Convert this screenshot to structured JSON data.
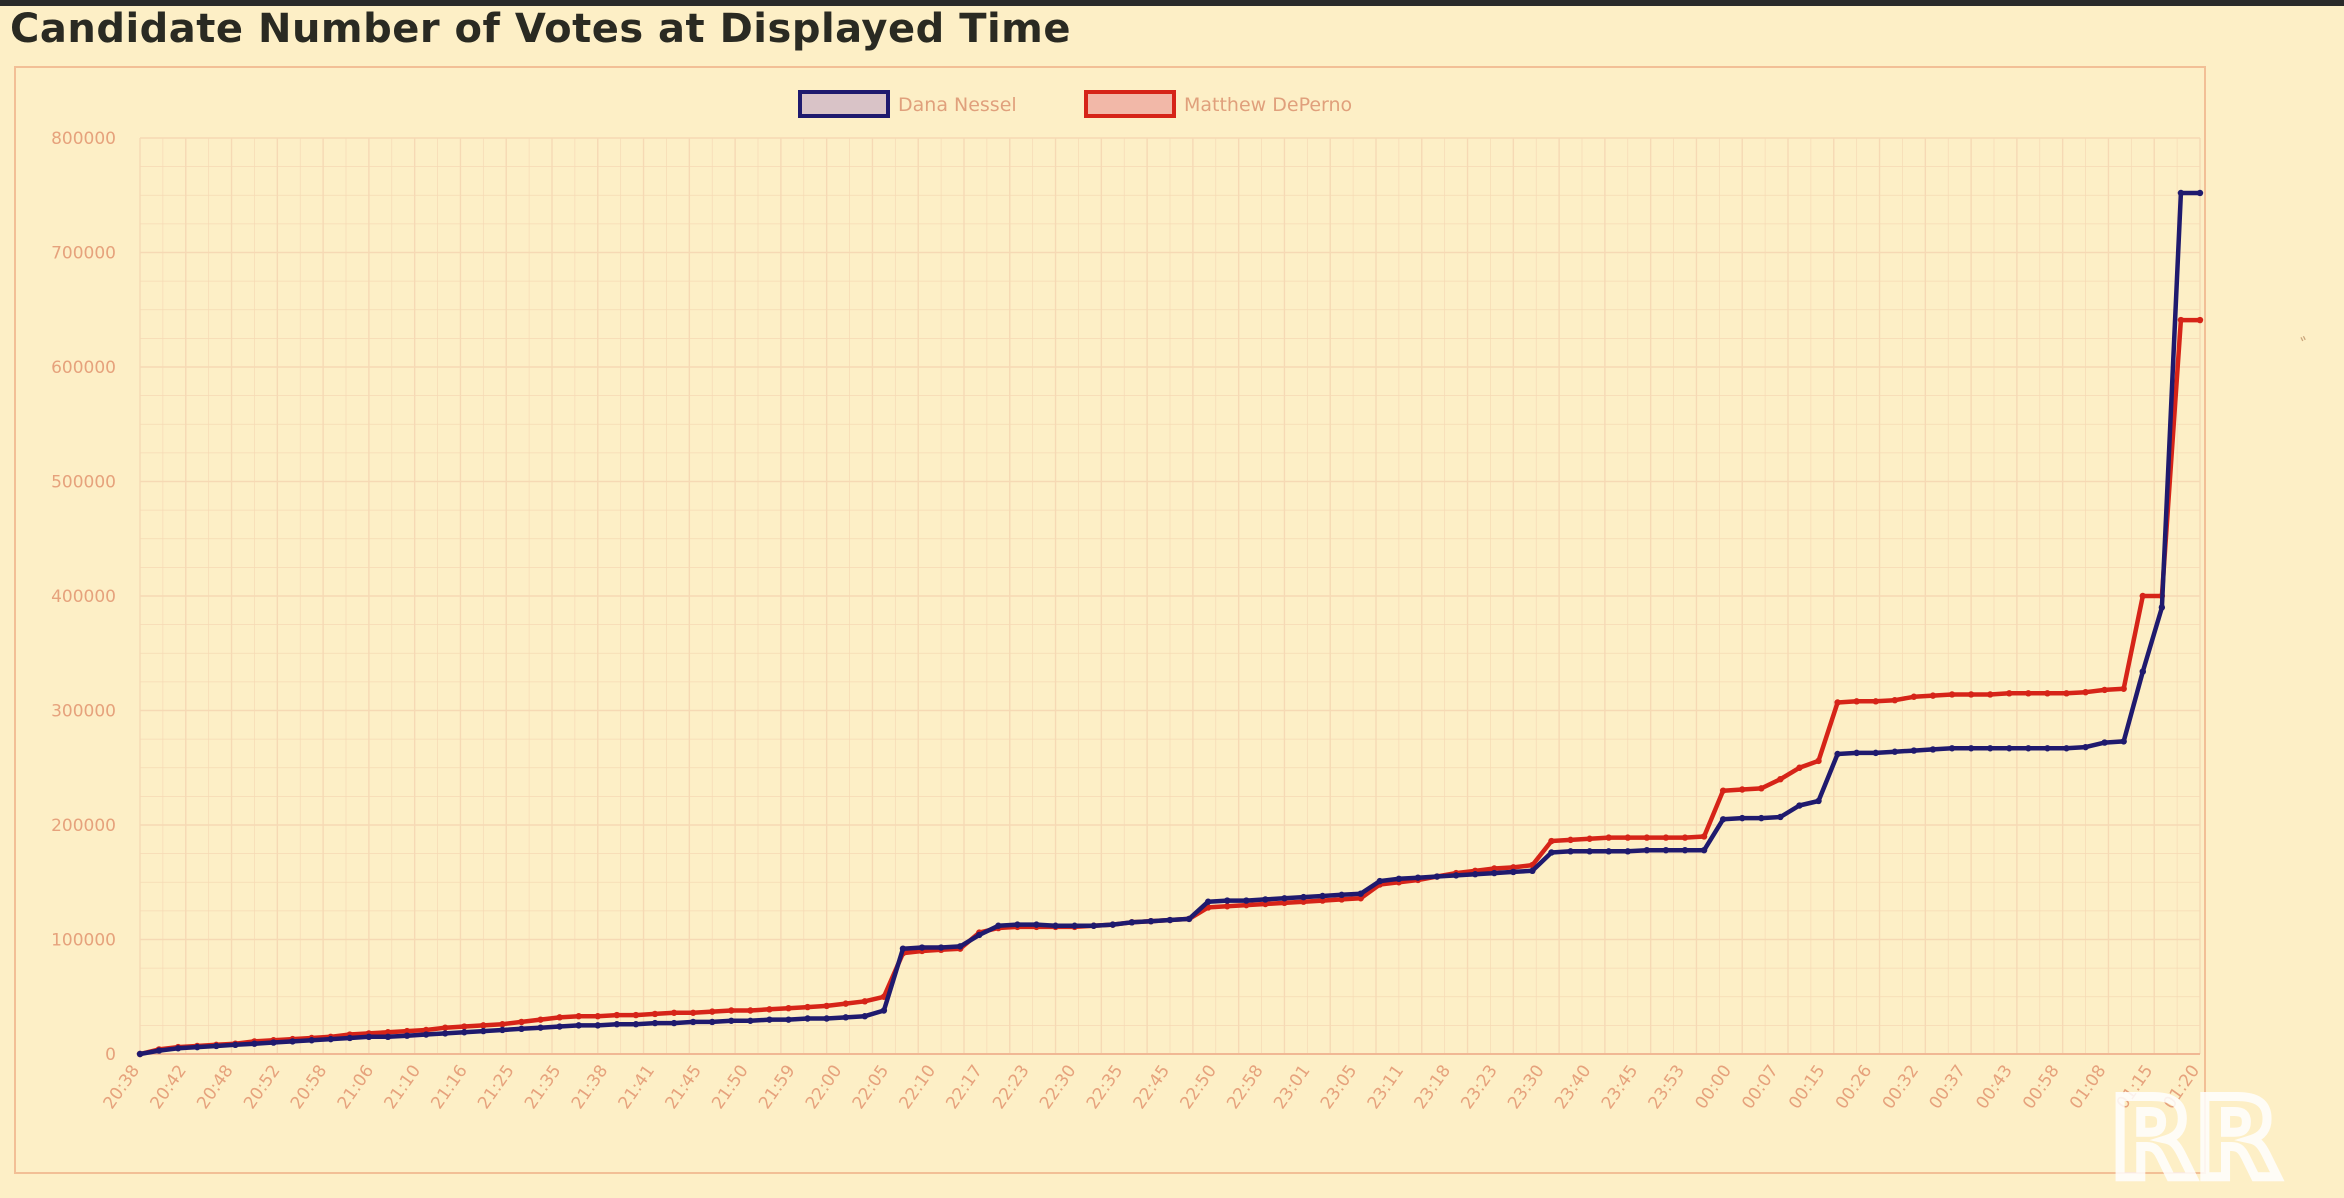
{
  "title": "Candidate Number of Votes at Displayed Time",
  "side_mark": "ﾞ",
  "logo_text": "RR",
  "colors": {
    "background": "#fdefc6",
    "grid": "#f6d9b4",
    "series1": "#1f1a6e",
    "series2": "#d62418"
  },
  "chart_data": {
    "type": "line",
    "title": "Candidate Number of Votes at Displayed Time",
    "xlabel": "",
    "ylabel": "",
    "ylim": [
      0,
      800000
    ],
    "yticks": [
      0,
      100000,
      200000,
      300000,
      400000,
      500000,
      600000,
      700000,
      800000
    ],
    "x_tick_labels": [
      "20:38",
      "20:42",
      "20:48",
      "20:52",
      "20:58",
      "21:06",
      "21:10",
      "21:16",
      "21:25",
      "21:35",
      "21:38",
      "21:41",
      "21:45",
      "21:50",
      "21:59",
      "22:00",
      "22:05",
      "22:10",
      "22:17",
      "22:23",
      "22:30",
      "22:35",
      "22:45",
      "22:50",
      "22:58",
      "23:01",
      "23:05",
      "23:11",
      "23:18",
      "23:23",
      "23:30",
      "23:40",
      "23:45",
      "23:53",
      "00:00",
      "00:07",
      "00:15",
      "00:26",
      "00:32",
      "00:37",
      "00:43",
      "00:58",
      "01:08",
      "01:15",
      "01:20"
    ],
    "grid": true,
    "legend_position": "top-center",
    "series": [
      {
        "name": "Dana Nessel",
        "color": "#1f1a6e",
        "values": [
          0,
          3000,
          5000,
          6000,
          7000,
          8000,
          9000,
          10000,
          11000,
          12000,
          13000,
          14000,
          15000,
          15000,
          16000,
          17000,
          18000,
          19000,
          20000,
          21000,
          22000,
          23000,
          24000,
          25000,
          25000,
          26000,
          26000,
          27000,
          27000,
          28000,
          28000,
          29000,
          29000,
          30000,
          30000,
          31000,
          31000,
          32000,
          33000,
          38000,
          92000,
          93000,
          93000,
          94000,
          104000,
          112000,
          113000,
          113000,
          112000,
          112000,
          112000,
          113000,
          115000,
          116000,
          117000,
          118000,
          133000,
          134000,
          134000,
          135000,
          136000,
          137000,
          138000,
          139000,
          140000,
          151000,
          153000,
          154000,
          155000,
          156000,
          157000,
          158000,
          159000,
          160000,
          176000,
          177000,
          177000,
          177000,
          177000,
          178000,
          178000,
          178000,
          178000,
          205000,
          206000,
          206000,
          207000,
          217000,
          221000,
          262000,
          263000,
          263000,
          264000,
          265000,
          266000,
          267000,
          267000,
          267000,
          267000,
          267000,
          267000,
          267000,
          268000,
          272000,
          273000,
          334000,
          390000,
          752000,
          752000
        ],
        "values_note": ""
      },
      {
        "name": "Matthew DePerno",
        "color": "#d62418",
        "values": [
          0,
          4000,
          6000,
          7000,
          8000,
          9000,
          11000,
          12000,
          13000,
          14000,
          15000,
          17000,
          18000,
          19000,
          20000,
          21000,
          23000,
          24000,
          25000,
          26000,
          28000,
          30000,
          32000,
          33000,
          33000,
          34000,
          34000,
          35000,
          36000,
          36000,
          37000,
          38000,
          38000,
          39000,
          40000,
          41000,
          42000,
          44000,
          46000,
          50000,
          88000,
          90000,
          91000,
          92000,
          106000,
          110000,
          111000,
          111000,
          111000,
          111000,
          112000,
          113000,
          115000,
          116000,
          117000,
          118000,
          128000,
          129000,
          130000,
          131000,
          132000,
          133000,
          134000,
          135000,
          136000,
          148000,
          150000,
          152000,
          155000,
          158000,
          160000,
          162000,
          163000,
          165000,
          186000,
          187000,
          188000,
          189000,
          189000,
          189000,
          189000,
          189000,
          190000,
          230000,
          231000,
          232000,
          240000,
          250000,
          256000,
          307000,
          308000,
          308000,
          309000,
          312000,
          313000,
          314000,
          314000,
          314000,
          315000,
          315000,
          315000,
          315000,
          316000,
          318000,
          319000,
          400000,
          400000,
          641000,
          641000
        ],
        "values_note": ""
      }
    ]
  }
}
